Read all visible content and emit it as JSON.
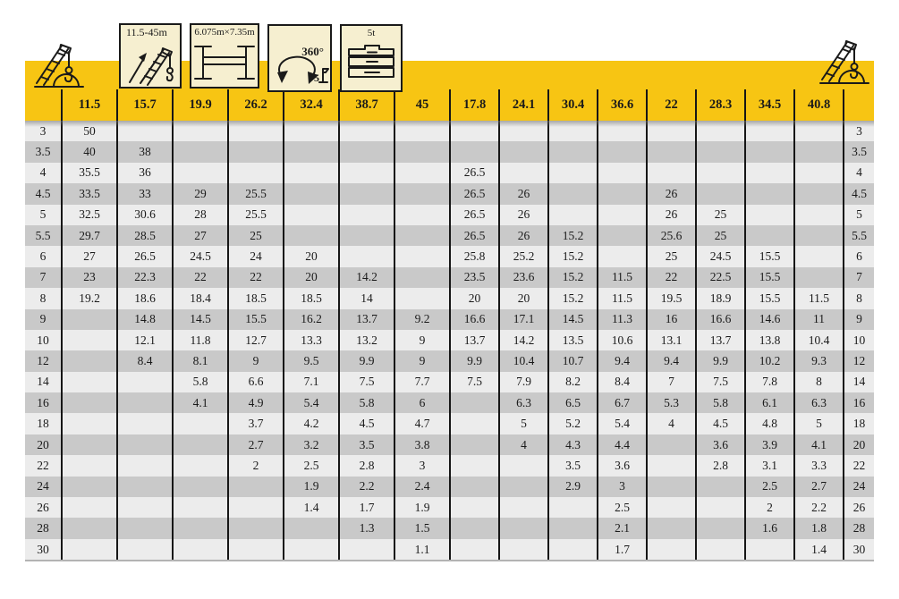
{
  "document": {
    "type": "crane-load-chart-table"
  },
  "colors": {
    "band_yellow": "#F7C513",
    "icon_background": "#F6EFD0",
    "row_light": "#ECECEC",
    "row_dark": "#C9C9C9",
    "grid_line": "#161616"
  },
  "icons": {
    "left_crane": "crane-boom-with-hook-icon",
    "right_crane": "crane-boom-with-hook-icon",
    "boom_range_label": "11.5-45m",
    "outrigger_label": "6.075m×7.35m",
    "slew_label": "360°",
    "slew_sub_label": "5",
    "counterweight_label": "5t"
  },
  "table": {
    "boom_columns": [
      "11.5",
      "15.7",
      "19.9",
      "26.2",
      "32.4",
      "38.7",
      "45",
      "17.8",
      "24.1",
      "30.4",
      "36.6",
      "22",
      "28.3",
      "34.5",
      "40.8"
    ],
    "rows": [
      {
        "radius": "3",
        "values": [
          "50",
          "",
          "",
          "",
          "",
          "",
          "",
          "",
          "",
          "",
          "",
          "",
          "",
          "",
          ""
        ]
      },
      {
        "radius": "3.5",
        "values": [
          "40",
          "38",
          "",
          "",
          "",
          "",
          "",
          "",
          "",
          "",
          "",
          "",
          "",
          "",
          ""
        ]
      },
      {
        "radius": "4",
        "values": [
          "35.5",
          "36",
          "",
          "",
          "",
          "",
          "",
          "26.5",
          "",
          "",
          "",
          "",
          "",
          "",
          ""
        ]
      },
      {
        "radius": "4.5",
        "values": [
          "33.5",
          "33",
          "29",
          "25.5",
          "",
          "",
          "",
          "26.5",
          "26",
          "",
          "",
          "26",
          "",
          "",
          ""
        ]
      },
      {
        "radius": "5",
        "values": [
          "32.5",
          "30.6",
          "28",
          "25.5",
          "",
          "",
          "",
          "26.5",
          "26",
          "",
          "",
          "26",
          "25",
          "",
          ""
        ]
      },
      {
        "radius": "5.5",
        "values": [
          "29.7",
          "28.5",
          "27",
          "25",
          "",
          "",
          "",
          "26.5",
          "26",
          "15.2",
          "",
          "25.6",
          "25",
          "",
          ""
        ]
      },
      {
        "radius": "6",
        "values": [
          "27",
          "26.5",
          "24.5",
          "24",
          "20",
          "",
          "",
          "25.8",
          "25.2",
          "15.2",
          "",
          "25",
          "24.5",
          "15.5",
          ""
        ]
      },
      {
        "radius": "7",
        "values": [
          "23",
          "22.3",
          "22",
          "22",
          "20",
          "14.2",
          "",
          "23.5",
          "23.6",
          "15.2",
          "11.5",
          "22",
          "22.5",
          "15.5",
          ""
        ]
      },
      {
        "radius": "8",
        "values": [
          "19.2",
          "18.6",
          "18.4",
          "18.5",
          "18.5",
          "14",
          "",
          "20",
          "20",
          "15.2",
          "11.5",
          "19.5",
          "18.9",
          "15.5",
          "11.5"
        ]
      },
      {
        "radius": "9",
        "values": [
          "",
          "14.8",
          "14.5",
          "15.5",
          "16.2",
          "13.7",
          "9.2",
          "16.6",
          "17.1",
          "14.5",
          "11.3",
          "16",
          "16.6",
          "14.6",
          "11"
        ]
      },
      {
        "radius": "10",
        "values": [
          "",
          "12.1",
          "11.8",
          "12.7",
          "13.3",
          "13.2",
          "9",
          "13.7",
          "14.2",
          "13.5",
          "10.6",
          "13.1",
          "13.7",
          "13.8",
          "10.4"
        ]
      },
      {
        "radius": "12",
        "values": [
          "",
          "8.4",
          "8.1",
          "9",
          "9.5",
          "9.9",
          "9",
          "9.9",
          "10.4",
          "10.7",
          "9.4",
          "9.4",
          "9.9",
          "10.2",
          "9.3"
        ]
      },
      {
        "radius": "14",
        "values": [
          "",
          "",
          "5.8",
          "6.6",
          "7.1",
          "7.5",
          "7.7",
          "7.5",
          "7.9",
          "8.2",
          "8.4",
          "7",
          "7.5",
          "7.8",
          "8"
        ]
      },
      {
        "radius": "16",
        "values": [
          "",
          "",
          "4.1",
          "4.9",
          "5.4",
          "5.8",
          "6",
          "",
          "6.3",
          "6.5",
          "6.7",
          "5.3",
          "5.8",
          "6.1",
          "6.3"
        ]
      },
      {
        "radius": "18",
        "values": [
          "",
          "",
          "",
          "3.7",
          "4.2",
          "4.5",
          "4.7",
          "",
          "5",
          "5.2",
          "5.4",
          "4",
          "4.5",
          "4.8",
          "5"
        ]
      },
      {
        "radius": "20",
        "values": [
          "",
          "",
          "",
          "2.7",
          "3.2",
          "3.5",
          "3.8",
          "",
          "4",
          "4.3",
          "4.4",
          "",
          "3.6",
          "3.9",
          "4.1"
        ]
      },
      {
        "radius": "22",
        "values": [
          "",
          "",
          "",
          "2",
          "2.5",
          "2.8",
          "3",
          "",
          "",
          "3.5",
          "3.6",
          "",
          "2.8",
          "3.1",
          "3.3"
        ]
      },
      {
        "radius": "24",
        "values": [
          "",
          "",
          "",
          "",
          "1.9",
          "2.2",
          "2.4",
          "",
          "",
          "2.9",
          "3",
          "",
          "",
          "2.5",
          "2.7"
        ]
      },
      {
        "radius": "26",
        "values": [
          "",
          "",
          "",
          "",
          "1.4",
          "1.7",
          "1.9",
          "",
          "",
          "",
          "2.5",
          "",
          "",
          "2",
          "2.2"
        ]
      },
      {
        "radius": "28",
        "values": [
          "",
          "",
          "",
          "",
          "",
          "1.3",
          "1.5",
          "",
          "",
          "",
          "2.1",
          "",
          "",
          "1.6",
          "1.8"
        ]
      },
      {
        "radius": "30",
        "values": [
          "",
          "",
          "",
          "",
          "",
          "",
          "1.1",
          "",
          "",
          "",
          "1.7",
          "",
          "",
          "",
          "1.4"
        ]
      }
    ]
  }
}
